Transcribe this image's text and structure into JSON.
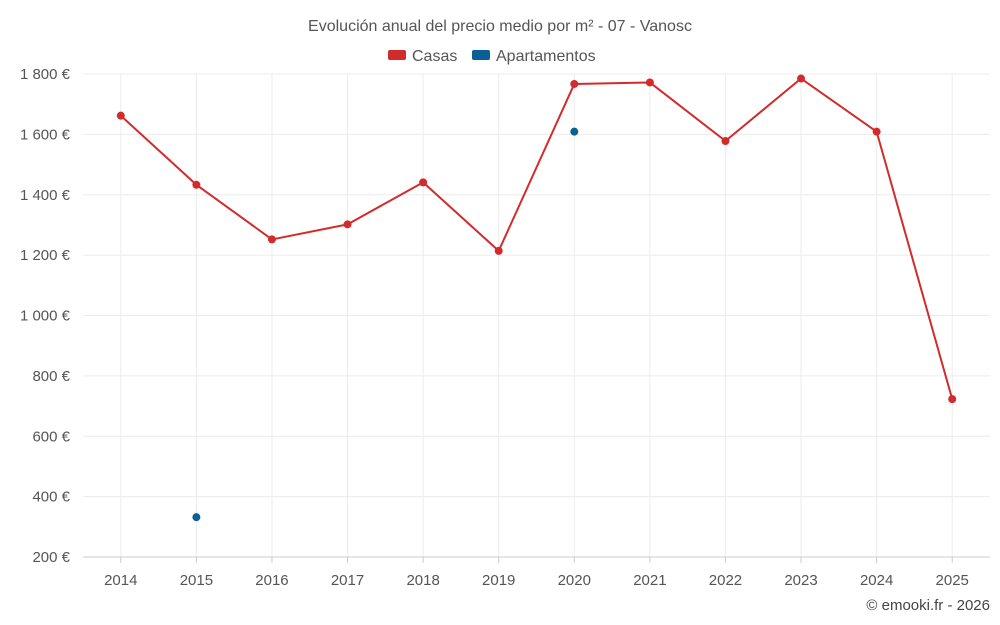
{
  "chart_data": {
    "type": "line",
    "title": "Evolución anual del precio medio por m² - 07 - Vanosc",
    "categories": [
      "2014",
      "2015",
      "2016",
      "2017",
      "2018",
      "2019",
      "2020",
      "2021",
      "2022",
      "2023",
      "2024",
      "2025"
    ],
    "series": [
      {
        "name": "Casas",
        "color": "#d22b2b",
        "values": [
          1662,
          1433,
          1252,
          1302,
          1441,
          1214,
          1767,
          1772,
          1578,
          1785,
          1609,
          723
        ]
      },
      {
        "name": "Apartamentos",
        "color": "#0a5f96",
        "values": [
          null,
          332,
          null,
          null,
          null,
          null,
          1609,
          null,
          null,
          null,
          null,
          null
        ]
      }
    ],
    "y_ticks": [
      200,
      400,
      600,
      800,
      1000,
      1200,
      1400,
      1600,
      1800
    ],
    "y_tick_labels": [
      "200 €",
      "400 €",
      "600 €",
      "800 €",
      "1 000 €",
      "1 200 €",
      "1 400 €",
      "1 600 €",
      "1 800 €"
    ],
    "ylim": [
      200,
      1800
    ],
    "xlabel": "",
    "ylabel": "",
    "grid": true,
    "legend_position": "top-center"
  },
  "credit": "© emooki.fr - 2026"
}
